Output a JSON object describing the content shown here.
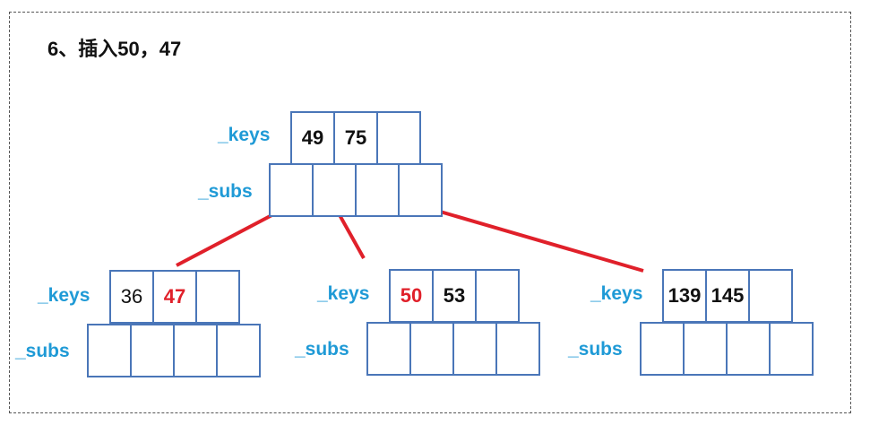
{
  "title": "6、插入50，47",
  "colors": {
    "label": "#1f9ad6",
    "border": "#4a76b8",
    "highlight": "#e0202a",
    "edge": "#e0202a",
    "text": "#111111"
  },
  "labels": {
    "keys": "_keys",
    "subs": "_subs"
  },
  "nodes": {
    "root": {
      "keys": [
        "49",
        "75",
        ""
      ],
      "highlight": [
        false,
        false,
        false
      ],
      "bold": [
        true,
        true,
        true
      ],
      "subs": [
        "",
        "",
        "",
        ""
      ]
    },
    "left": {
      "keys": [
        "36",
        "47",
        ""
      ],
      "highlight": [
        false,
        true,
        false
      ],
      "bold": [
        false,
        true,
        false
      ],
      "subs": [
        "",
        "",
        "",
        ""
      ]
    },
    "middle": {
      "keys": [
        "50",
        "53",
        ""
      ],
      "highlight": [
        true,
        false,
        false
      ],
      "bold": [
        true,
        true,
        false
      ],
      "subs": [
        "",
        "",
        "",
        ""
      ]
    },
    "right": {
      "keys": [
        "139",
        "145",
        ""
      ],
      "highlight": [
        false,
        false,
        false
      ],
      "bold": [
        true,
        true,
        false
      ],
      "subs": [
        "",
        "",
        "",
        ""
      ]
    }
  }
}
